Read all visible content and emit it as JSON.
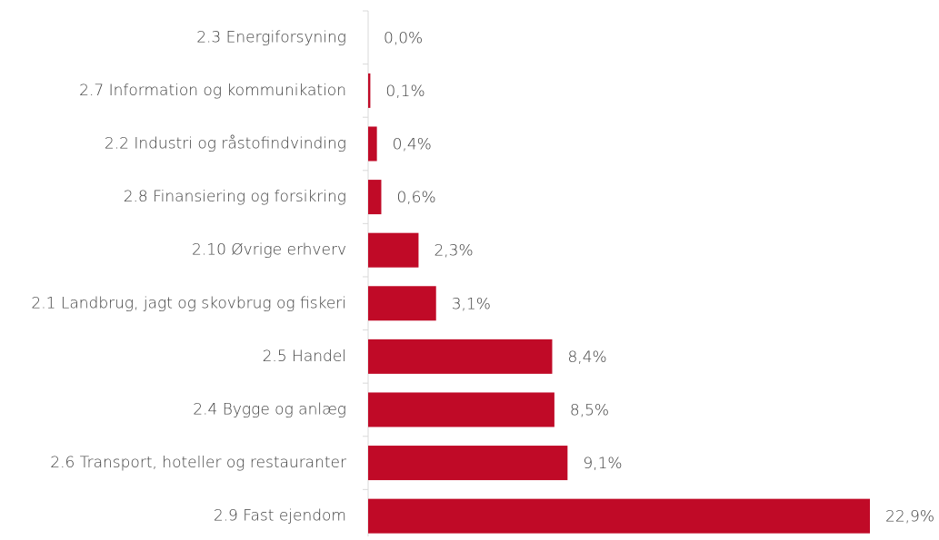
{
  "chart_data": {
    "type": "barh",
    "categories": [
      "2.3 Energiforsyning",
      "2.7 Information og kommunikation",
      "2.2 Industri og råstofindvinding",
      "2.8 Finansiering og forsikring",
      "2.10 Øvrige erhverv",
      "2.1 Landbrug, jagt og skovbrug og fiskeri",
      "2.5 Handel",
      "2.4 Bygge og anlæg",
      "2.6 Transport, hoteller og restauranter",
      "2.9 Fast ejendom"
    ],
    "values": [
      0.0,
      0.1,
      0.4,
      0.6,
      2.3,
      3.1,
      8.4,
      8.5,
      9.1,
      22.9
    ],
    "value_labels": [
      "0,0%",
      "0,1%",
      "0,4%",
      "0,6%",
      "2,3%",
      "3,1%",
      "8,4%",
      "8,5%",
      "9,1%",
      "22,9%"
    ],
    "color": "#c00a27"
  }
}
